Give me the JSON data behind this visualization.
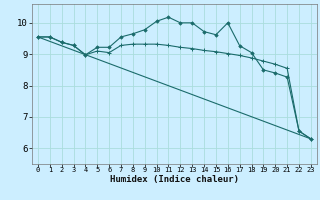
{
  "title": "",
  "xlabel": "Humidex (Indice chaleur)",
  "bg_color": "#cceeff",
  "grid_color": "#aadddd",
  "line_color": "#1a6b6b",
  "xlim": [
    -0.5,
    23.5
  ],
  "ylim": [
    5.5,
    10.6
  ],
  "yticks": [
    6,
    7,
    8,
    9,
    10
  ],
  "xticks": [
    0,
    1,
    2,
    3,
    4,
    5,
    6,
    7,
    8,
    9,
    10,
    11,
    12,
    13,
    14,
    15,
    16,
    17,
    18,
    19,
    20,
    21,
    22,
    23
  ],
  "series1_x": [
    0,
    1,
    2,
    3,
    4,
    5,
    6,
    7,
    8,
    9,
    10,
    11,
    12,
    13,
    14,
    15,
    16,
    17,
    18,
    19,
    20,
    21,
    22,
    23
  ],
  "series1_y": [
    9.55,
    9.55,
    9.38,
    9.28,
    8.98,
    9.22,
    9.22,
    9.55,
    9.65,
    9.78,
    10.05,
    10.18,
    10.0,
    10.0,
    9.72,
    9.62,
    10.0,
    9.27,
    9.05,
    8.5,
    8.4,
    8.27,
    6.55,
    6.3
  ],
  "series2_x": [
    0,
    1,
    2,
    3,
    4,
    5,
    6,
    7,
    8,
    9,
    10,
    11,
    12,
    13,
    14,
    15,
    16,
    17,
    18,
    19,
    20,
    21,
    22,
    23
  ],
  "series2_y": [
    9.55,
    9.55,
    9.38,
    9.28,
    8.98,
    9.1,
    9.05,
    9.28,
    9.32,
    9.32,
    9.32,
    9.28,
    9.22,
    9.18,
    9.12,
    9.08,
    9.02,
    8.96,
    8.88,
    8.78,
    8.68,
    8.55,
    6.55,
    6.3
  ],
  "series3_x": [
    0,
    23
  ],
  "series3_y": [
    9.55,
    6.3
  ]
}
